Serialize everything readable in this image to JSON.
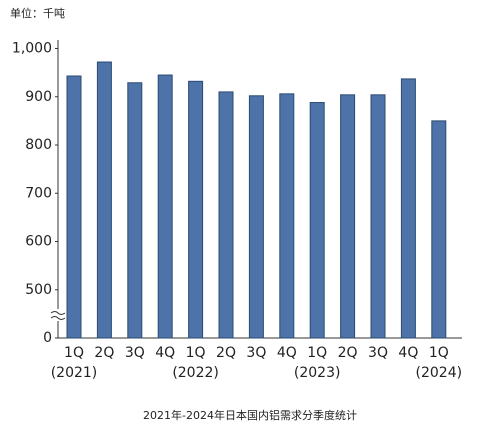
{
  "chart_data": {
    "type": "bar",
    "unit_label": "单位：千吨",
    "caption": "2021年-2024年日本国内铝需求分季度统计",
    "categories": [
      "1Q",
      "2Q",
      "3Q",
      "4Q",
      "1Q",
      "2Q",
      "3Q",
      "4Q",
      "1Q",
      "2Q",
      "3Q",
      "4Q",
      "1Q"
    ],
    "years": [
      "(2021)",
      null,
      null,
      null,
      "(2022)",
      null,
      null,
      null,
      "(2023)",
      null,
      null,
      null,
      "(2024)"
    ],
    "values": [
      943,
      972,
      929,
      945,
      932,
      910,
      902,
      906,
      888,
      904,
      904,
      937,
      850
    ],
    "color": "#4d73a8",
    "ylim": [
      0,
      1000
    ],
    "yticks": [
      0,
      500,
      600,
      700,
      800,
      900,
      {
        "value": 1000,
        "label": "1,000"
      }
    ],
    "axis_break": [
      0,
      500
    ]
  }
}
